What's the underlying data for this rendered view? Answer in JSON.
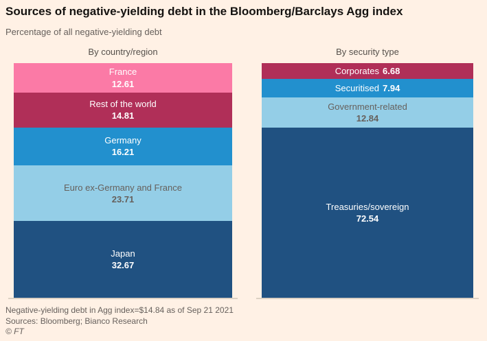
{
  "page": {
    "title": "Sources of negative-yielding debt in the Bloomberg/Barclays Agg index",
    "subtitle": "Percentage of all negative-yielding debt"
  },
  "chart_data": [
    {
      "type": "bar",
      "variant": "100%-stacked-column",
      "title": "By country/region",
      "unit": "% of all negative-yielding debt",
      "segments": [
        {
          "label": "France",
          "value": 12.61,
          "color": "#FB7AA6",
          "text_color": "#FFFFFF",
          "inline_label": false
        },
        {
          "label": "Rest of the world",
          "value": 14.81,
          "color": "#B02F58",
          "text_color": "#FFFFFF",
          "inline_label": false
        },
        {
          "label": "Germany",
          "value": 16.21,
          "color": "#2290CE",
          "text_color": "#FFFFFF",
          "inline_label": false
        },
        {
          "label": "Euro ex-Germany and France",
          "value": 23.71,
          "color": "#94CEE7",
          "text_color": "#66605C",
          "inline_label": false
        },
        {
          "label": "Japan",
          "value": 32.67,
          "color": "#205181",
          "text_color": "#FFFFFF",
          "inline_label": false
        }
      ]
    },
    {
      "type": "bar",
      "variant": "100%-stacked-column",
      "title": "By security type",
      "unit": "% of all negative-yielding debt",
      "segments": [
        {
          "label": "Corporates",
          "value": 6.68,
          "color": "#B02F58",
          "text_color": "#FFFFFF",
          "inline_label": true
        },
        {
          "label": "Securitised",
          "value": 7.94,
          "color": "#2290CE",
          "text_color": "#FFFFFF",
          "inline_label": true
        },
        {
          "label": "Government-related",
          "value": 12.84,
          "color": "#94CEE7",
          "text_color": "#66605C",
          "inline_label": false
        },
        {
          "label": "Treasuries/sovereign",
          "value": 72.54,
          "color": "#205181",
          "text_color": "#FFFFFF",
          "inline_label": false
        }
      ]
    }
  ],
  "footer": {
    "note": "Negative-yielding debt in Agg index=$14.84 as of Sep 21 2021",
    "sources": "Sources: Bloomberg; Bianco Research",
    "copyright": "© FT"
  },
  "colors": {
    "background": "#FFF1E5",
    "title_text": "#141210",
    "muted_text": "#66605C",
    "axis_line": "#DCD1C3"
  }
}
